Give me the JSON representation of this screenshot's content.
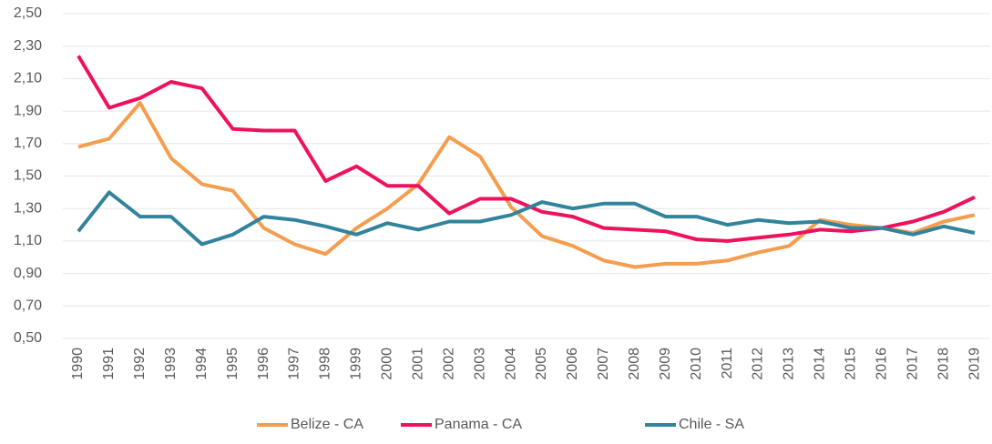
{
  "chart_data": {
    "type": "line",
    "categories": [
      "1990",
      "1991",
      "1992",
      "1993",
      "1994",
      "1995",
      "1996",
      "1997",
      "1998",
      "1999",
      "2000",
      "2001",
      "2002",
      "2003",
      "2004",
      "2005",
      "2006",
      "2007",
      "2008",
      "2009",
      "2010",
      "2011",
      "2012",
      "2013",
      "2014",
      "2015",
      "2016",
      "2017",
      "2018",
      "2019"
    ],
    "series": [
      {
        "name": "Belize - CA",
        "color": "#f59d4f",
        "values": [
          1.68,
          1.73,
          1.95,
          1.61,
          1.45,
          1.41,
          1.18,
          1.08,
          1.02,
          1.18,
          1.3,
          1.45,
          1.74,
          1.62,
          1.31,
          1.13,
          1.07,
          0.98,
          0.94,
          0.96,
          0.96,
          0.98,
          1.03,
          1.07,
          1.23,
          1.2,
          1.18,
          1.15,
          1.22,
          1.26
        ]
      },
      {
        "name": "Panama - CA",
        "color": "#f0115e",
        "values": [
          2.24,
          1.92,
          1.98,
          2.08,
          2.04,
          1.79,
          1.78,
          1.78,
          1.47,
          1.56,
          1.44,
          1.44,
          1.27,
          1.36,
          1.36,
          1.28,
          1.25,
          1.18,
          1.17,
          1.16,
          1.11,
          1.1,
          1.12,
          1.14,
          1.17,
          1.16,
          1.18,
          1.22,
          1.28,
          1.37
        ]
      },
      {
        "name": "Chile - SA",
        "color": "#31849b",
        "values": [
          1.16,
          1.4,
          1.25,
          1.25,
          1.08,
          1.14,
          1.25,
          1.23,
          1.19,
          1.14,
          1.21,
          1.17,
          1.22,
          1.22,
          1.26,
          1.34,
          1.3,
          1.33,
          1.33,
          1.25,
          1.25,
          1.2,
          1.23,
          1.21,
          1.22,
          1.18,
          1.18,
          1.14,
          1.19,
          1.15
        ]
      }
    ],
    "ylim": [
      0.5,
      2.5
    ],
    "yticks": [
      {
        "value": 0.5,
        "label": "0,50"
      },
      {
        "value": 0.7,
        "label": "0,70"
      },
      {
        "value": 0.9,
        "label": "0,90"
      },
      {
        "value": 1.1,
        "label": "1,10"
      },
      {
        "value": 1.3,
        "label": "1,30"
      },
      {
        "value": 1.5,
        "label": "1,50"
      },
      {
        "value": 1.7,
        "label": "1,70"
      },
      {
        "value": 1.9,
        "label": "1,90"
      },
      {
        "value": 2.1,
        "label": "2,10"
      },
      {
        "value": 2.3,
        "label": "2,30"
      },
      {
        "value": 2.5,
        "label": "2,50"
      }
    ],
    "grid": true,
    "legend": "bottom"
  }
}
